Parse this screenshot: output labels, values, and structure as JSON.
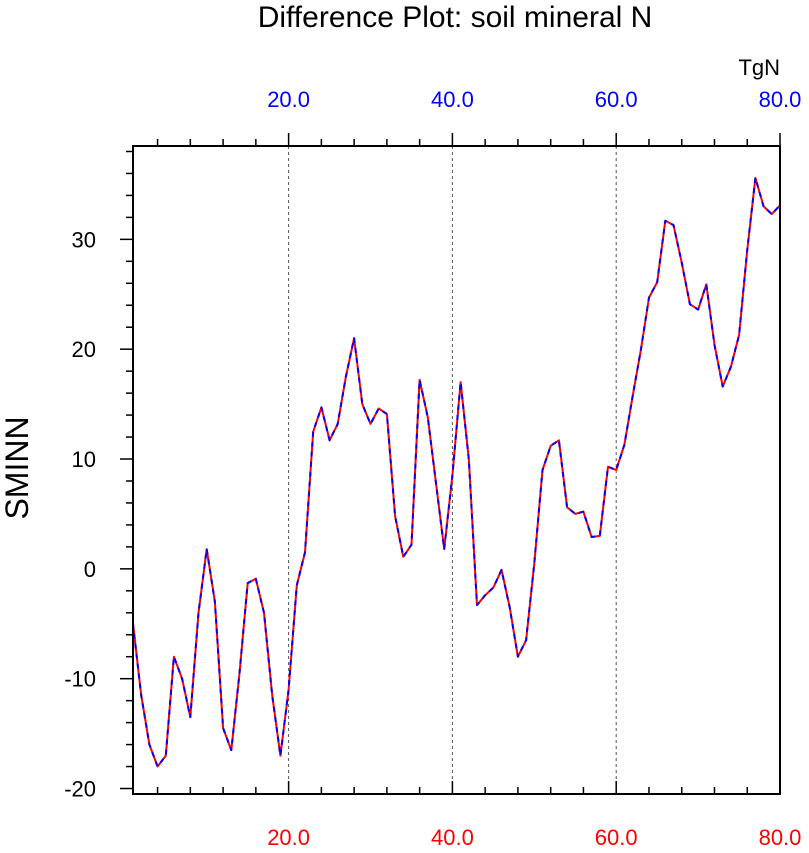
{
  "chart_data": {
    "type": "line",
    "title": "Difference Plot: soil mineral N",
    "unit_label": "TgN",
    "ylabel": "SMINN",
    "xlim": [
      1,
      80
    ],
    "ylim": [
      -20.5,
      38.5
    ],
    "grid": "vertical dashed at 20, 40, 60",
    "x_ticks_bottom": [
      {
        "value": 20,
        "label": "20.0"
      },
      {
        "value": 40,
        "label": "40.0"
      },
      {
        "value": 60,
        "label": "60.0"
      },
      {
        "value": 80,
        "label": "80.0"
      }
    ],
    "x_ticks_top": [
      {
        "value": 20,
        "label": "20.0"
      },
      {
        "value": 40,
        "label": "40.0"
      },
      {
        "value": 60,
        "label": "60.0"
      },
      {
        "value": 80,
        "label": "80.0"
      }
    ],
    "y_ticks": [
      {
        "value": -20,
        "label": "-20"
      },
      {
        "value": -10,
        "label": "-10"
      },
      {
        "value": 0,
        "label": "0"
      },
      {
        "value": 10,
        "label": "10"
      },
      {
        "value": 20,
        "label": "20"
      },
      {
        "value": 30,
        "label": "30"
      }
    ],
    "bottom_axis_color": "#ff0000",
    "top_axis_color": "#0000ff",
    "series": [
      {
        "color": "#ff0000",
        "dash": "solid",
        "x": [
          1,
          2,
          3,
          4,
          5,
          6,
          7,
          8,
          9,
          10,
          11,
          12,
          13,
          14,
          15,
          16,
          17,
          18,
          19,
          20,
          21,
          22,
          23,
          24,
          25,
          26,
          27,
          28,
          29,
          30,
          31,
          32,
          33,
          34,
          35,
          36,
          37,
          38,
          39,
          40,
          41,
          42,
          43,
          44,
          45,
          46,
          47,
          48,
          49,
          50,
          51,
          52,
          53,
          54,
          55,
          56,
          57,
          58,
          59,
          60,
          61,
          62,
          63,
          64,
          65,
          66,
          67,
          68,
          69,
          70,
          71,
          72,
          73,
          74,
          75,
          76,
          77,
          78,
          79,
          80
        ],
        "values": [
          -5,
          -11.5,
          -16,
          -18,
          -17,
          -8,
          -10,
          -13.5,
          -4,
          1.8,
          -3,
          -14.5,
          -16.5,
          -9.5,
          -1.3,
          -0.9,
          -4,
          -11.5,
          -17,
          -11,
          -1.5,
          1.5,
          12.5,
          14.7,
          11.7,
          13.2,
          17.5,
          21,
          15,
          13.2,
          14.6,
          14.1,
          4.8,
          1.1,
          2.2,
          17.2,
          13.8,
          7.8,
          1.8,
          8.5,
          17,
          10,
          -3.3,
          -2.4,
          -1.7,
          -0.1,
          -3.5,
          -8,
          -6.5,
          0.5,
          9,
          11.2,
          11.7,
          5.6,
          5,
          5.2,
          2.9,
          3,
          9.3,
          9,
          11.3,
          15.7,
          19.9,
          24.7,
          26.1,
          31.7,
          31.3,
          27.9,
          24.1,
          23.6,
          25.9,
          20.4,
          16.6,
          18.4,
          21.3,
          29,
          35.6,
          33,
          32.3,
          33.1
        ]
      },
      {
        "color": "#0000ff",
        "dash": "dashed",
        "x": [
          1,
          2,
          3,
          4,
          5,
          6,
          7,
          8,
          9,
          10,
          11,
          12,
          13,
          14,
          15,
          16,
          17,
          18,
          19,
          20,
          21,
          22,
          23,
          24,
          25,
          26,
          27,
          28,
          29,
          30,
          31,
          32,
          33,
          34,
          35,
          36,
          37,
          38,
          39,
          40,
          41,
          42,
          43,
          44,
          45,
          46,
          47,
          48,
          49,
          50,
          51,
          52,
          53,
          54,
          55,
          56,
          57,
          58,
          59,
          60,
          61,
          62,
          63,
          64,
          65,
          66,
          67,
          68,
          69,
          70,
          71,
          72,
          73,
          74,
          75,
          76,
          77,
          78,
          79,
          80
        ],
        "values": [
          -5,
          -11.5,
          -16,
          -18,
          -17,
          -8,
          -10,
          -13.5,
          -4,
          1.8,
          -3,
          -14.5,
          -16.5,
          -9.5,
          -1.3,
          -0.9,
          -4,
          -11.5,
          -17,
          -11,
          -1.5,
          1.5,
          12.5,
          14.7,
          11.7,
          13.2,
          17.5,
          21,
          15,
          13.2,
          14.6,
          14.1,
          4.8,
          1.1,
          2.2,
          17.2,
          13.8,
          7.8,
          1.8,
          8.5,
          17,
          10,
          -3.3,
          -2.4,
          -1.7,
          -0.1,
          -3.5,
          -8,
          -6.5,
          0.5,
          9,
          11.2,
          11.7,
          5.6,
          5,
          5.2,
          2.9,
          3,
          9.3,
          9,
          11.3,
          15.7,
          19.9,
          24.7,
          26.1,
          31.7,
          31.3,
          27.9,
          24.1,
          23.6,
          25.9,
          20.4,
          16.6,
          18.4,
          21.3,
          29,
          35.6,
          33,
          32.3,
          33.1
        ]
      }
    ]
  }
}
